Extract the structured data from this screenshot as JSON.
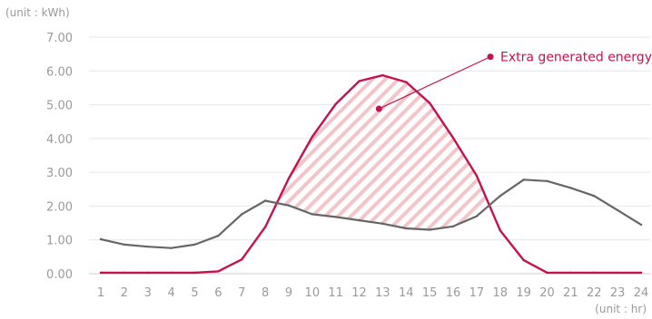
{
  "chart_data": {
    "type": "line",
    "y_unit_label": "(unit : kWh)",
    "x_unit_label": "(unit : hr)",
    "ylim": [
      0,
      7
    ],
    "y_ticks": [
      "0.00",
      "1.00",
      "2.00",
      "3.00",
      "4.00",
      "5.00",
      "6.00",
      "7.00"
    ],
    "grid": true,
    "x": [
      1,
      2,
      3,
      4,
      5,
      6,
      7,
      8,
      9,
      10,
      11,
      12,
      13,
      14,
      15,
      16,
      17,
      18,
      19,
      20,
      21,
      22,
      23,
      24
    ],
    "series": [
      {
        "color": "#c4124f",
        "values": [
          0.03,
          0.03,
          0.03,
          0.03,
          0.03,
          0.07,
          0.42,
          1.38,
          2.82,
          4.05,
          5.02,
          5.7,
          5.87,
          5.67,
          5.05,
          4.02,
          2.9,
          1.28,
          0.4,
          0.03,
          0.03,
          0.03,
          0.03,
          0.03
        ]
      },
      {
        "color": "#666666",
        "values": [
          1.02,
          0.86,
          0.8,
          0.76,
          0.86,
          1.12,
          1.76,
          2.16,
          2.02,
          1.76,
          1.68,
          1.58,
          1.48,
          1.34,
          1.3,
          1.4,
          1.7,
          2.3,
          2.78,
          2.74,
          2.54,
          2.3,
          1.88,
          1.45
        ]
      }
    ],
    "annotation": {
      "text": "Extra generated energy",
      "color": "#c4124f",
      "hatch_color": "#f3c4c8"
    }
  }
}
